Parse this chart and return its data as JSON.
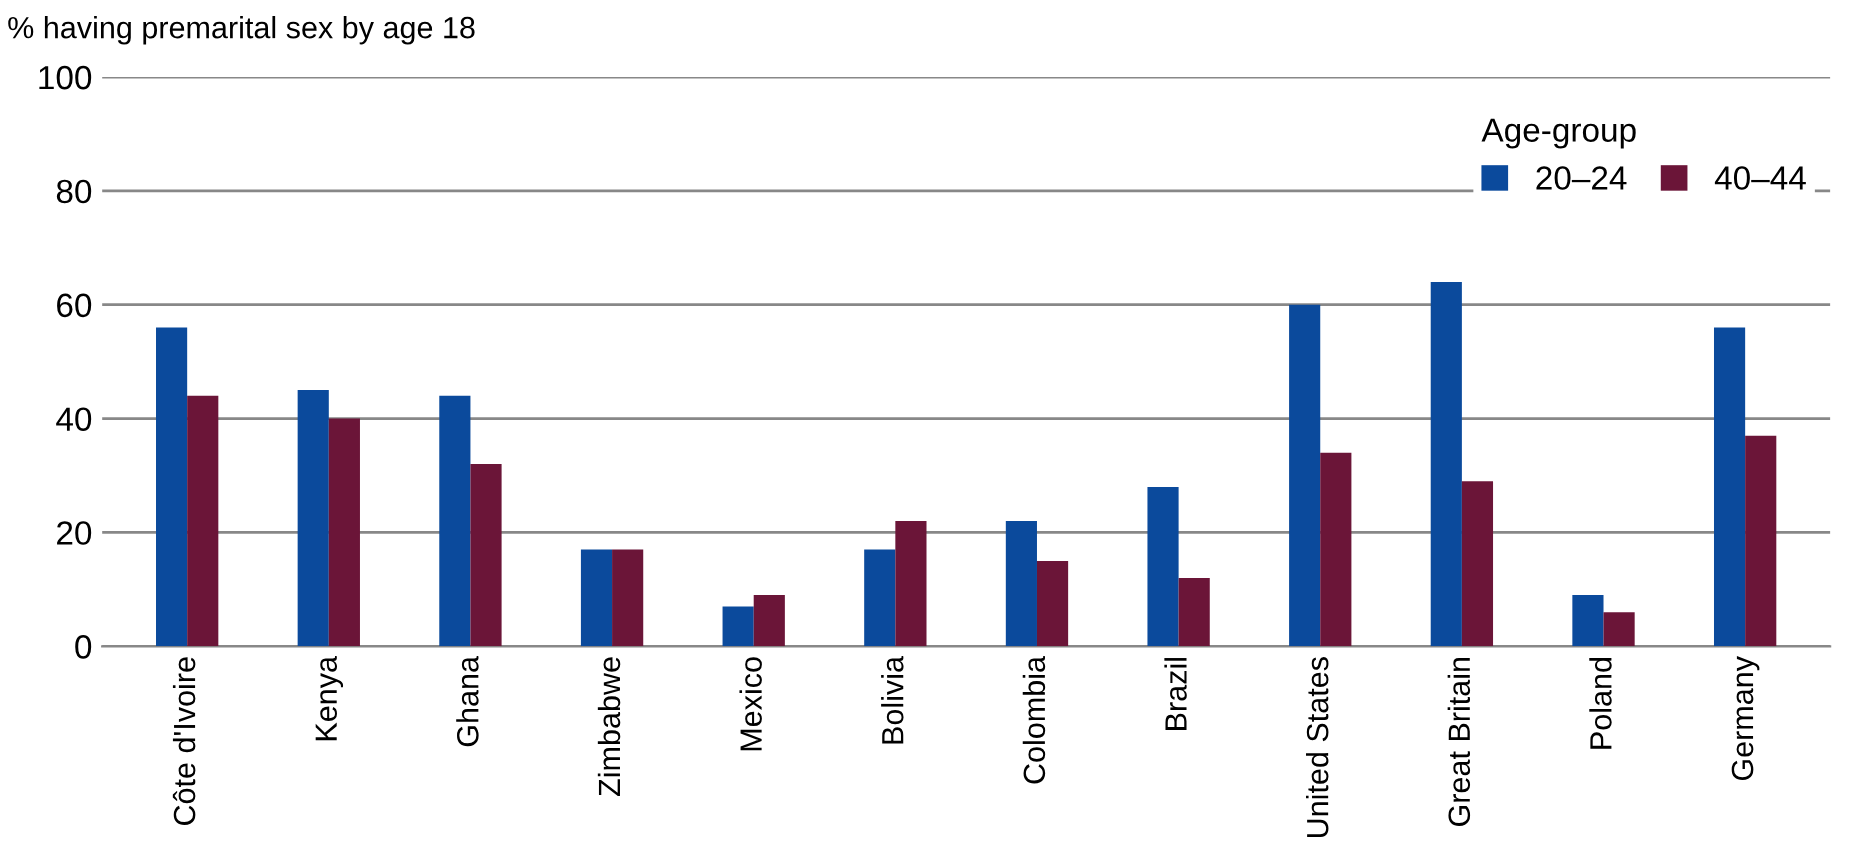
{
  "chart_data": {
    "type": "bar",
    "title": "% having premarital sex by age 18",
    "categories": [
      "Côte d'Ivoire",
      "Kenya",
      "Ghana",
      "Zimbabwe",
      "Mexico",
      "Bolivia",
      "Colombia",
      "Brazil",
      "United States",
      "Great Britain",
      "Poland",
      "Germany"
    ],
    "series": [
      {
        "name": "20–24",
        "color": "#0b4a9c",
        "values": [
          56,
          45,
          44,
          17,
          7,
          17,
          22,
          28,
          60,
          64,
          9,
          56
        ]
      },
      {
        "name": "40–44",
        "color": "#6b1538",
        "values": [
          44,
          40,
          32,
          17,
          9,
          22,
          15,
          12,
          34,
          29,
          6,
          37
        ]
      }
    ],
    "legend_title": "Age-group",
    "legend": "top right",
    "ylim": [
      0,
      100
    ],
    "yticks": [
      0,
      20,
      40,
      60,
      80,
      100
    ],
    "grid": "y"
  }
}
